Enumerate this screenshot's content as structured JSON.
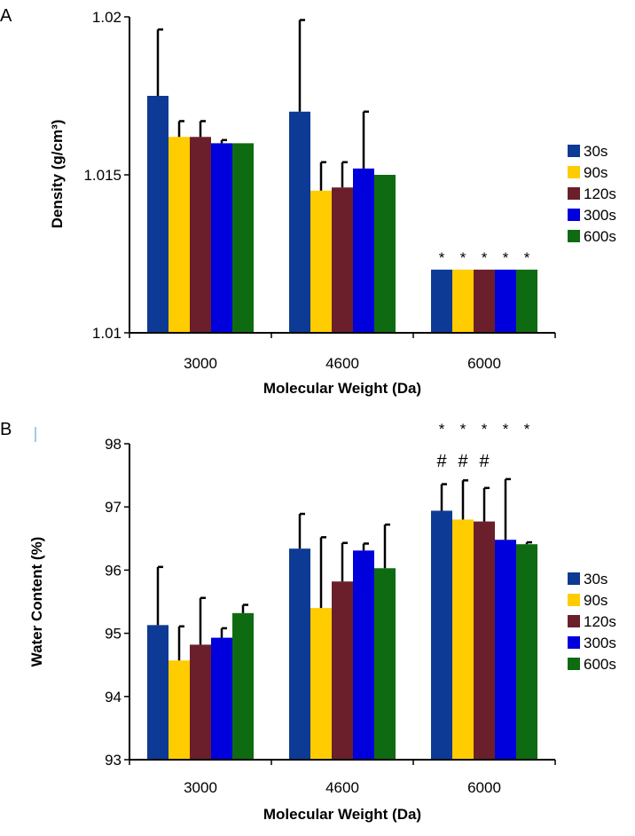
{
  "colors": {
    "30s": "#0d3a94",
    "90s": "#ffcc00",
    "120s": "#6b1f2a",
    "300s": "#0000dd",
    "600s": "#0f6b12",
    "axis": "#000000"
  },
  "chart_data": [
    {
      "panel_label": "A",
      "type": "bar",
      "title": "",
      "xlabel": "Molecular Weight (Da)",
      "ylabel": "Density (g/cm³)",
      "ylim": [
        1.01,
        1.02
      ],
      "yticks": [
        1.01,
        1.015,
        1.02
      ],
      "ytick_labels": [
        "1.01",
        "1.015",
        "1.02"
      ],
      "categories": [
        "3000",
        "4600",
        "6000"
      ],
      "legend": [
        "30s",
        "90s",
        "120s",
        "300s",
        "600s"
      ],
      "legend_position": "right",
      "series": [
        {
          "name": "30s",
          "values": [
            1.0175,
            1.017,
            1.012
          ],
          "errors": [
            0.0021,
            0.0029,
            0.0
          ]
        },
        {
          "name": "90s",
          "values": [
            1.0162,
            1.0145,
            1.012
          ],
          "errors": [
            0.0005,
            0.0009,
            0.0
          ]
        },
        {
          "name": "120s",
          "values": [
            1.0162,
            1.0146,
            1.012
          ],
          "errors": [
            0.0005,
            0.0008,
            0.0
          ]
        },
        {
          "name": "300s",
          "values": [
            1.016,
            1.0152,
            1.012
          ],
          "errors": [
            0.0001,
            0.0018,
            0.0
          ]
        },
        {
          "name": "600s",
          "values": [
            1.016,
            1.015,
            1.012
          ],
          "errors": [
            0.0,
            0.0,
            0.0
          ]
        }
      ],
      "annotations": [
        {
          "category": 2,
          "series": 0,
          "lines": [
            "*"
          ]
        },
        {
          "category": 2,
          "series": 1,
          "lines": [
            "*"
          ]
        },
        {
          "category": 2,
          "series": 2,
          "lines": [
            "*"
          ]
        },
        {
          "category": 2,
          "series": 3,
          "lines": [
            "*"
          ]
        },
        {
          "category": 2,
          "series": 4,
          "lines": [
            "*"
          ]
        }
      ]
    },
    {
      "panel_label": "B",
      "type": "bar",
      "title": "",
      "xlabel": "Molecular Weight (Da)",
      "ylabel": "Water Content (%)",
      "ylim": [
        93,
        98
      ],
      "yticks": [
        93,
        94,
        95,
        96,
        97,
        98
      ],
      "ytick_labels": [
        "93",
        "94",
        "95",
        "96",
        "97",
        "98"
      ],
      "categories": [
        "3000",
        "4600",
        "6000"
      ],
      "legend": [
        "30s",
        "90s",
        "120s",
        "300s",
        "600s"
      ],
      "legend_position": "right",
      "series": [
        {
          "name": "30s",
          "values": [
            95.13,
            96.34,
            96.94
          ],
          "errors": [
            0.92,
            0.55,
            0.42
          ]
        },
        {
          "name": "90s",
          "values": [
            94.57,
            95.4,
            96.8
          ],
          "errors": [
            0.54,
            1.12,
            0.62
          ]
        },
        {
          "name": "120s",
          "values": [
            94.82,
            95.82,
            96.77
          ],
          "errors": [
            0.74,
            0.61,
            0.53
          ]
        },
        {
          "name": "300s",
          "values": [
            94.93,
            96.31,
            96.48
          ],
          "errors": [
            0.15,
            0.11,
            0.96
          ]
        },
        {
          "name": "600s",
          "values": [
            95.32,
            96.03,
            96.41
          ],
          "errors": [
            0.13,
            0.69,
            0.03
          ]
        }
      ],
      "annotations": [
        {
          "category": 2,
          "series": 0,
          "lines": [
            "*",
            "#"
          ]
        },
        {
          "category": 2,
          "series": 1,
          "lines": [
            "*",
            "#"
          ]
        },
        {
          "category": 2,
          "series": 2,
          "lines": [
            "*",
            "#"
          ]
        },
        {
          "category": 2,
          "series": 3,
          "lines": [
            "*"
          ]
        },
        {
          "category": 2,
          "series": 4,
          "lines": [
            "*"
          ]
        }
      ]
    }
  ]
}
